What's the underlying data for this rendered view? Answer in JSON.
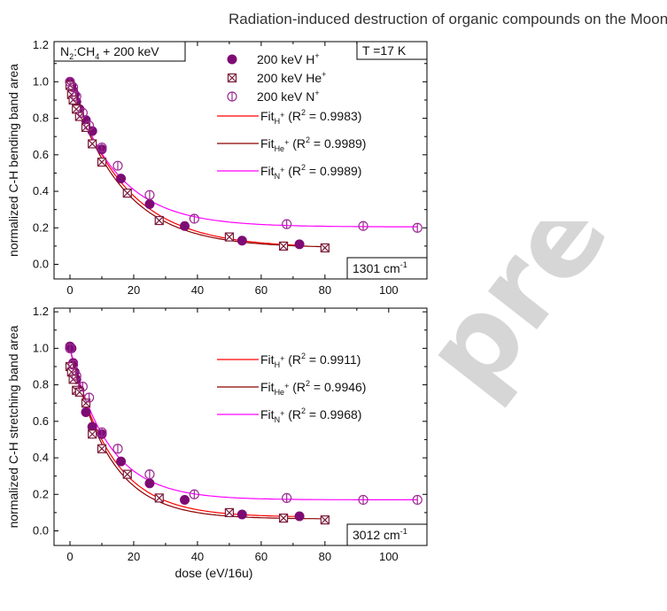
{
  "header": "Radiation-induced destruction of organic compounds on the Moon",
  "watermark_text": "pre-pr",
  "colors": {
    "H": "#7e0b74",
    "He": "#7a1a38",
    "N": "#9b2a92",
    "fitH": "#ff0000",
    "fitHe": "#8b0000",
    "fitN": "#ff00ff",
    "axis": "#000000"
  },
  "chart_data": [
    {
      "type": "scatter",
      "panel": "top",
      "title_box": {
        "base": "N",
        "sub1": "2",
        "mid": ":CH",
        "sub2": "4",
        "tail": " + 200 keV"
      },
      "temperature": "T =17 K",
      "band_box": {
        "text": "1301 cm",
        "sup": "-1"
      },
      "xlabel": "",
      "ylabel": "normalized C-H bending band area",
      "xlim": [
        -5,
        112
      ],
      "ylim": [
        -0.08,
        1.22
      ],
      "xticks": [
        "0",
        "20",
        "40",
        "60",
        "80",
        "100"
      ],
      "yticks": [
        "0.0",
        "0.2",
        "0.4",
        "0.6",
        "0.8",
        "1.0",
        "1.2"
      ],
      "legend_location": "top-right",
      "series": [
        {
          "key": "H",
          "name": "200 keV H",
          "sup": "+",
          "marker": "filled-circle",
          "x": [
            0,
            0.5,
            1,
            1.5,
            2,
            3,
            5,
            7,
            10,
            16,
            25,
            36,
            54,
            72
          ],
          "y": [
            1.0,
            0.98,
            0.95,
            0.93,
            0.89,
            0.85,
            0.79,
            0.73,
            0.63,
            0.47,
            0.33,
            0.21,
            0.13,
            0.11
          ]
        },
        {
          "key": "He",
          "name": "200 keV He",
          "sup": "+",
          "marker": "boxed-x",
          "x": [
            0,
            0.5,
            1,
            2,
            3,
            5,
            7,
            10,
            18,
            28,
            50,
            67,
            80
          ],
          "y": [
            0.98,
            0.93,
            0.9,
            0.85,
            0.81,
            0.75,
            0.66,
            0.56,
            0.39,
            0.24,
            0.15,
            0.1,
            0.09
          ]
        },
        {
          "key": "N",
          "name": "200 keV N",
          "sup": "+",
          "marker": "open-circle-line",
          "x": [
            0,
            1,
            2,
            4,
            6,
            10,
            15,
            25,
            39,
            68,
            92,
            109
          ],
          "y": [
            1.0,
            0.97,
            0.92,
            0.83,
            0.76,
            0.64,
            0.54,
            0.38,
            0.25,
            0.22,
            0.21,
            0.2
          ]
        }
      ],
      "fits": [
        {
          "key": "H",
          "label": "Fit",
          "sub": "H",
          "r2": " (R",
          "r2sup": "2",
          "r2val": " = 0.9983)",
          "a": 0.09,
          "b": 0.91,
          "k": 0.058,
          "xmax": 72
        },
        {
          "key": "He",
          "label": "Fit",
          "sub": "He",
          "r2": " (R",
          "r2sup": "2",
          "r2val": " = 0.9989)",
          "a": 0.09,
          "b": 0.91,
          "k": 0.062,
          "xmax": 80
        },
        {
          "key": "N",
          "label": "Fit",
          "sub": "N",
          "r2": " (R",
          "r2sup": "2",
          "r2val": " = 0.9989)",
          "a": 0.205,
          "b": 0.795,
          "k": 0.068,
          "xmax": 109
        }
      ]
    },
    {
      "type": "scatter",
      "panel": "bottom",
      "band_box": {
        "text": "3012 cm",
        "sup": "-1"
      },
      "xlabel": "dose (eV/16u)",
      "ylabel": "normalized C-H stretching band area",
      "xlim": [
        -5,
        112
      ],
      "ylim": [
        -0.08,
        1.22
      ],
      "xticks": [
        "0",
        "20",
        "40",
        "60",
        "80",
        "100"
      ],
      "yticks": [
        "0.0",
        "0.2",
        "0.4",
        "0.6",
        "0.8",
        "1.0",
        "1.2"
      ],
      "legend_location": "top-right",
      "series": [
        {
          "key": "H",
          "name": "200 keV H",
          "sup": "+",
          "marker": "filled-circle",
          "x": [
            0,
            0.5,
            1,
            1.5,
            2,
            3,
            5,
            7,
            10,
            16,
            25,
            36,
            54,
            72
          ],
          "y": [
            1.01,
            1.0,
            0.92,
            0.87,
            0.83,
            0.77,
            0.65,
            0.57,
            0.53,
            0.38,
            0.26,
            0.17,
            0.09,
            0.08
          ]
        },
        {
          "key": "He",
          "name": "200 keV He",
          "sup": "+",
          "marker": "boxed-x",
          "x": [
            0,
            0.5,
            1,
            2,
            3,
            5,
            7,
            10,
            18,
            28,
            50,
            67,
            80
          ],
          "y": [
            0.9,
            0.87,
            0.83,
            0.77,
            0.76,
            0.7,
            0.53,
            0.45,
            0.31,
            0.18,
            0.1,
            0.07,
            0.06
          ]
        },
        {
          "key": "N",
          "name": "200 keV N",
          "sup": "+",
          "marker": "open-circle-line",
          "x": [
            0,
            1,
            2,
            4,
            6,
            10,
            15,
            25,
            39,
            68,
            92,
            109
          ],
          "y": [
            1.0,
            0.91,
            0.85,
            0.79,
            0.73,
            0.54,
            0.45,
            0.31,
            0.2,
            0.18,
            0.17,
            0.17
          ]
        }
      ],
      "fits": [
        {
          "key": "H",
          "label": "Fit",
          "sub": "H",
          "r2": " (R",
          "r2sup": "2",
          "r2val": " = 0.9911)",
          "a": 0.075,
          "b": 0.925,
          "k": 0.078,
          "xmax": 72
        },
        {
          "key": "He",
          "label": "Fit",
          "sub": "He",
          "r2": " (R",
          "r2sup": "2",
          "r2val": " = 0.9946)",
          "a": 0.065,
          "b": 0.935,
          "k": 0.082,
          "xmax": 80
        },
        {
          "key": "N",
          "label": "Fit",
          "sub": "N",
          "r2": " (R",
          "r2sup": "2",
          "r2val": " = 0.9968)",
          "a": 0.17,
          "b": 0.83,
          "k": 0.083,
          "xmax": 109
        }
      ]
    }
  ]
}
